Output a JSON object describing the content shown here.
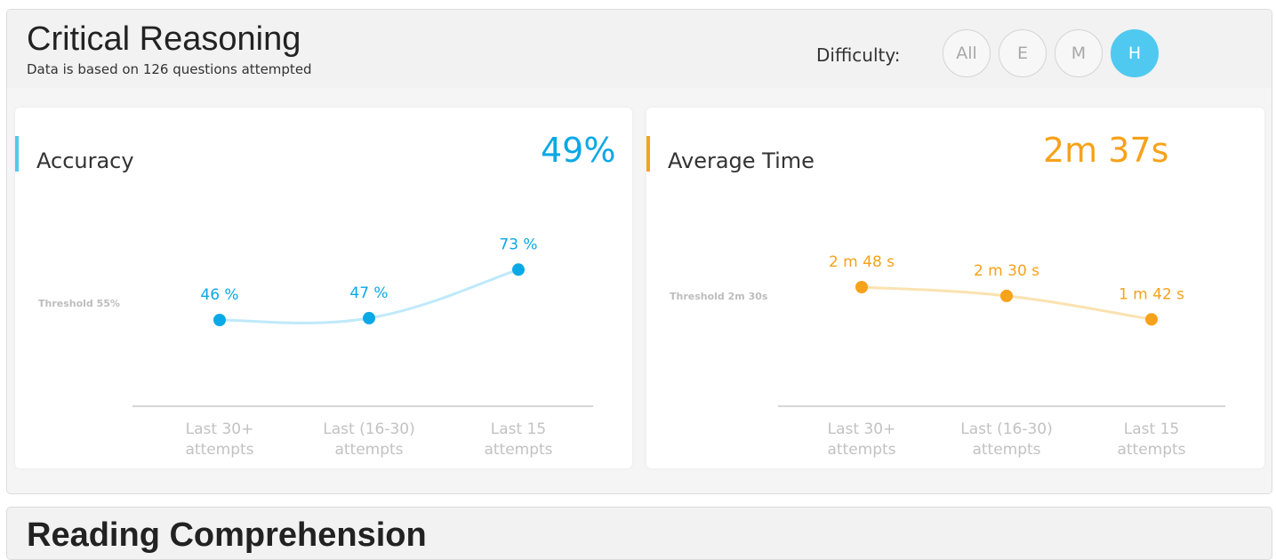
{
  "section": {
    "title": "Critical Reasoning",
    "subtitle": "Data is based on 126 questions attempted",
    "difficulty_label": "Difficulty:",
    "difficulty_options": [
      "All",
      "E",
      "M",
      "H"
    ],
    "difficulty_selected": "H"
  },
  "accuracy": {
    "title": "Accuracy",
    "value": "49%",
    "threshold_label": "Threshold 55%",
    "color": "#0aa8e6"
  },
  "avg_time": {
    "title": "Average Time",
    "value": "2m 37s",
    "threshold_label": "Threshold 2m 30s",
    "color": "#f7a21b"
  },
  "next_section": {
    "title": "Reading Comprehension"
  },
  "chart_data": [
    {
      "type": "line",
      "title": "Accuracy",
      "categories": [
        "Last 30+ attempts",
        "Last (16-30) attempts",
        "Last 15 attempts"
      ],
      "category_lines": [
        [
          "Last 30+",
          "attempts"
        ],
        [
          "Last (16-30)",
          "attempts"
        ],
        [
          "Last 15",
          "attempts"
        ]
      ],
      "series": [
        {
          "values": [
            46,
            47,
            73
          ]
        }
      ],
      "data_labels": [
        "46 %",
        "47 %",
        "73 %"
      ],
      "threshold": 55,
      "point_color": "#0aa8e6",
      "line_color": "#bfe9fa"
    },
    {
      "type": "line",
      "title": "Average Time",
      "categories": [
        "Last 30+ attempts",
        "Last (16-30) attempts",
        "Last 15 attempts"
      ],
      "category_lines": [
        [
          "Last 30+",
          "attempts"
        ],
        [
          "Last (16-30)",
          "attempts"
        ],
        [
          "Last 15",
          "attempts"
        ]
      ],
      "series": [
        {
          "values": [
            168,
            150,
            102
          ]
        }
      ],
      "data_labels": [
        "2 m 48 s",
        "2 m 30 s",
        "1 m 42 s"
      ],
      "threshold": 150,
      "point_color": "#f7a21b",
      "line_color": "#fbe2b1"
    }
  ]
}
